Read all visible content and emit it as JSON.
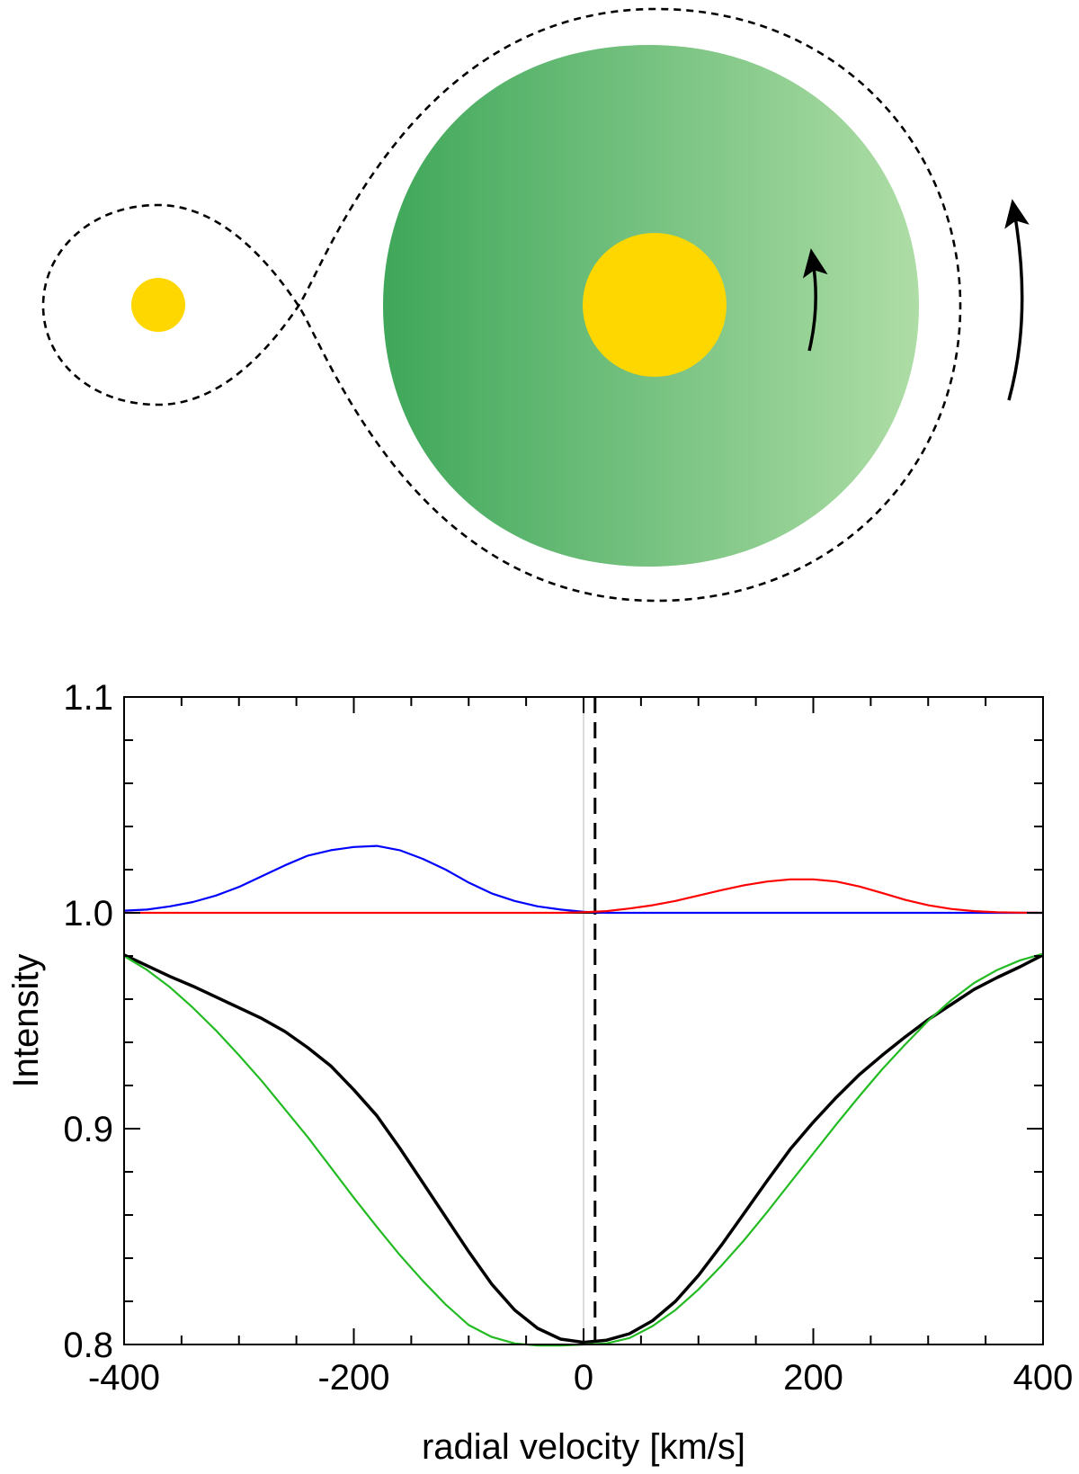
{
  "diagram": {
    "star_color": "#FFD700",
    "envelope_gradient": [
      "#3FA75A",
      "#AEDDA6"
    ],
    "roche_lobe_style": "dashed",
    "rotation_arrows": 2
  },
  "chart_data": {
    "type": "line",
    "title": "",
    "xlabel": "radial velocity [km/s]",
    "ylabel": "Intensity",
    "xlim": [
      -400,
      400
    ],
    "ylim": [
      0.8,
      1.1
    ],
    "xticks": [
      -400,
      -200,
      0,
      200,
      400
    ],
    "yticks": [
      0.8,
      0.9,
      1.0,
      1.1
    ],
    "xtick_labels": [
      "-400",
      "-200",
      "0",
      "200",
      "400"
    ],
    "ytick_labels": [
      "0.8",
      "0.9",
      "1.0",
      "1.1"
    ],
    "grid": false,
    "legend": "none",
    "reference_lines": {
      "vertical_dashed_x": 10,
      "vertical_thin_x": 0,
      "horizontal_y": 1.0
    },
    "series": [
      {
        "color": "#0000FF",
        "x": [
          -400,
          -380,
          -360,
          -340,
          -320,
          -300,
          -280,
          -260,
          -240,
          -220,
          -200,
          -180,
          -160,
          -140,
          -120,
          -100,
          -80,
          -60,
          -40,
          -20,
          0,
          20,
          40,
          60,
          80,
          100,
          120,
          140,
          160,
          180,
          200,
          220,
          240,
          260,
          280,
          300,
          320,
          340,
          360,
          380,
          400
        ],
        "y": [
          1.001,
          1.0015,
          1.003,
          1.005,
          1.008,
          1.012,
          1.017,
          1.022,
          1.0265,
          1.029,
          1.0305,
          1.031,
          1.029,
          1.025,
          1.02,
          1.014,
          1.009,
          1.0055,
          1.003,
          1.0015,
          1.0005,
          1.0,
          1.0,
          1.0,
          1.0,
          1.0,
          1.0,
          1.0,
          1.0,
          1.0,
          1.0,
          1.0,
          1.0,
          1.0,
          1.0,
          1.0,
          1.0,
          1.0,
          1.0,
          1.0,
          1.0
        ]
      },
      {
        "color": "#FF0000",
        "x": [
          -400,
          -380,
          -360,
          -340,
          -320,
          -300,
          -280,
          -260,
          -240,
          -220,
          -200,
          -180,
          -160,
          -140,
          -120,
          -100,
          -80,
          -60,
          -40,
          -20,
          0,
          20,
          40,
          60,
          80,
          100,
          120,
          140,
          160,
          180,
          200,
          220,
          240,
          260,
          280,
          300,
          320,
          340,
          360,
          380,
          400
        ],
        "y": [
          1.0,
          1.0,
          1.0,
          1.0,
          1.0,
          1.0,
          1.0,
          1.0,
          1.0,
          1.0,
          1.0,
          1.0,
          1.0,
          1.0,
          1.0,
          1.0,
          1.0,
          1.0,
          1.0,
          1.0,
          1.0003,
          1.0008,
          1.002,
          1.0035,
          1.0055,
          1.008,
          1.0105,
          1.0128,
          1.0145,
          1.0155,
          1.0155,
          1.0145,
          1.0122,
          1.0092,
          1.006,
          1.0035,
          1.0018,
          1.0008,
          1.0003,
          1.0001,
          1.0
        ]
      },
      {
        "color": "#000000",
        "x": [
          -400,
          -380,
          -360,
          -340,
          -320,
          -300,
          -280,
          -260,
          -240,
          -220,
          -200,
          -180,
          -160,
          -140,
          -120,
          -100,
          -80,
          -60,
          -40,
          -20,
          0,
          20,
          40,
          60,
          80,
          100,
          120,
          140,
          160,
          180,
          200,
          220,
          240,
          260,
          280,
          300,
          320,
          340,
          360,
          380,
          400
        ],
        "y": [
          0.9805,
          0.9755,
          0.9705,
          0.966,
          0.961,
          0.956,
          0.951,
          0.945,
          0.9375,
          0.929,
          0.918,
          0.906,
          0.891,
          0.875,
          0.859,
          0.843,
          0.828,
          0.816,
          0.8075,
          0.8025,
          0.801,
          0.802,
          0.805,
          0.811,
          0.82,
          0.832,
          0.846,
          0.861,
          0.876,
          0.8905,
          0.903,
          0.9145,
          0.925,
          0.934,
          0.9425,
          0.9505,
          0.9575,
          0.9645,
          0.97,
          0.975,
          0.9805
        ]
      },
      {
        "color": "#22BB22",
        "x": [
          -400,
          -380,
          -360,
          -340,
          -320,
          -300,
          -280,
          -260,
          -240,
          -220,
          -200,
          -180,
          -160,
          -140,
          -120,
          -100,
          -80,
          -60,
          -40,
          -20,
          0,
          20,
          40,
          60,
          80,
          100,
          120,
          140,
          160,
          180,
          200,
          220,
          240,
          260,
          280,
          300,
          320,
          340,
          360,
          380,
          400
        ],
        "y": [
          0.98,
          0.9735,
          0.9655,
          0.956,
          0.9455,
          0.934,
          0.922,
          0.909,
          0.896,
          0.882,
          0.868,
          0.8545,
          0.8415,
          0.8295,
          0.8185,
          0.809,
          0.8035,
          0.8005,
          0.7995,
          0.7995,
          0.8,
          0.8005,
          0.803,
          0.8085,
          0.816,
          0.8255,
          0.8365,
          0.8485,
          0.8615,
          0.875,
          0.8885,
          0.902,
          0.915,
          0.9275,
          0.939,
          0.95,
          0.9595,
          0.9675,
          0.9735,
          0.978,
          0.981
        ]
      }
    ]
  }
}
